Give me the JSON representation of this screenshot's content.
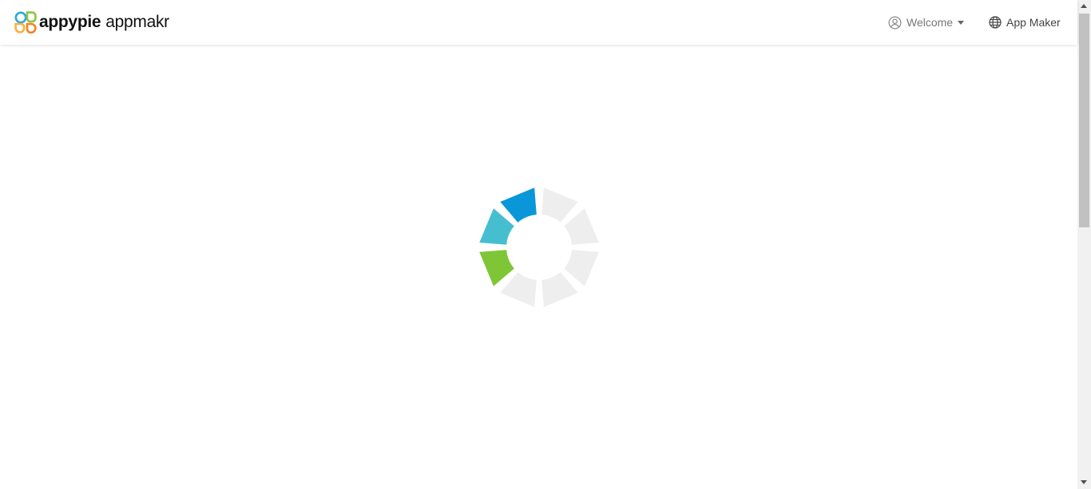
{
  "brand": {
    "name": "appypie",
    "product": "appmakr"
  },
  "header": {
    "user_menu_label": "Welcome",
    "app_maker_label": "App Maker"
  },
  "icons": {
    "user": "user-circle-icon",
    "dropdown": "caret-down-icon",
    "language": "globe-icon"
  },
  "loader": {
    "type": "spinner",
    "segments_total": 8,
    "active_colors": [
      "#0a97d9",
      "#45bfcf",
      "#7ec636"
    ],
    "inactive_color": "#eeeeee"
  },
  "colors": {
    "logo_green": "#8dc63f",
    "logo_blue": "#29a8df",
    "logo_orange": "#f58220",
    "logo_yellow": "#fbb040"
  }
}
